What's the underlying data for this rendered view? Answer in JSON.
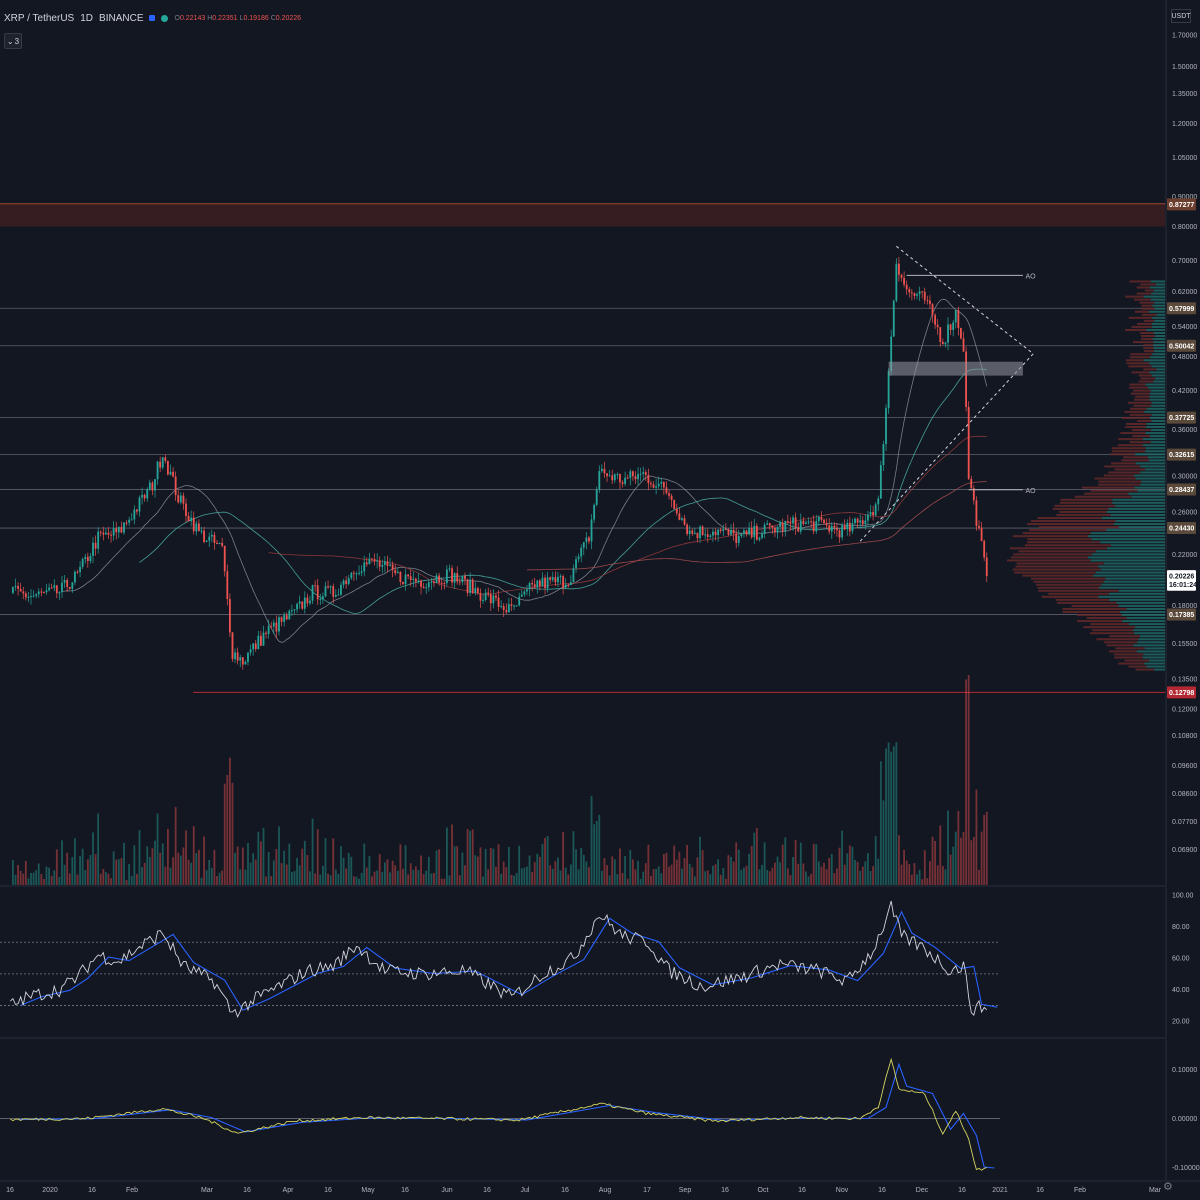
{
  "header": {
    "symbol": "XRP / TetherUS",
    "interval": "1D",
    "exchange": "BINANCE",
    "ohlc": [
      {
        "k": "O",
        "v": "0.22143"
      },
      {
        "k": "H",
        "v": "0.22351"
      },
      {
        "k": "L",
        "v": "0.19186"
      },
      {
        "k": "C",
        "v": "0.20226"
      }
    ],
    "indicator_count": "3",
    "unit": "USDT"
  },
  "colors": {
    "background": "#131722",
    "up": "#26a69a",
    "down": "#ef5350",
    "grid": "#2a2e39",
    "level": "#5d606b",
    "resistance_zone": "#3d1e22",
    "rsi": "#d1d4dc",
    "rsi_ma": "#2962ff",
    "osc": "#d4d460",
    "osc_ma": "#2962ff"
  },
  "icons": {
    "gear": "settings-gear-icon",
    "chevron": "chevron-down-icon"
  },
  "chart_data": [
    {
      "type": "candlestick",
      "name": "price",
      "scale": "log",
      "ylim": [
        0.06,
        1.95
      ],
      "price_axis": [
        "1.70000",
        "1.50000",
        "1.35000",
        "1.20000",
        "1.05000",
        "0.90000",
        "0.80000",
        "0.70000",
        "0.62000",
        "0.54000",
        "0.48000",
        "0.42000",
        "0.36000",
        "0.30000",
        "0.26000",
        "0.22000",
        "0.18000",
        "0.15500",
        "0.13500",
        "0.12000",
        "0.10800",
        "0.09600",
        "0.08600",
        "0.07700",
        "0.06900"
      ],
      "price_tags": [
        {
          "label": "0.87277",
          "kind": "resistance"
        },
        {
          "label": "0.57999",
          "kind": "level"
        },
        {
          "label": "0.50042",
          "kind": "level"
        },
        {
          "label": "0.37725",
          "kind": "level"
        },
        {
          "label": "0.32615",
          "kind": "level"
        },
        {
          "label": "0.28437",
          "kind": "level"
        },
        {
          "label": "0.24430",
          "kind": "level"
        },
        {
          "label": "0.20226",
          "kind": "last"
        },
        {
          "label": "16:01:24",
          "kind": "countdown"
        },
        {
          "label": "0.17385",
          "kind": "level"
        },
        {
          "label": "0.12798",
          "kind": "support"
        }
      ],
      "line_labels": [
        "AO",
        "AO"
      ],
      "resistance_zone": [
        0.8,
        0.875
      ],
      "close_points": [
        {
          "x": "2019-12-17",
          "y": 0.19
        },
        {
          "x": "2019-12-25",
          "y": 0.187
        },
        {
          "x": "2020-01-05",
          "y": 0.19
        },
        {
          "x": "2020-01-12",
          "y": 0.203
        },
        {
          "x": "2020-01-20",
          "y": 0.235
        },
        {
          "x": "2020-01-28",
          "y": 0.24
        },
        {
          "x": "2020-02-04",
          "y": 0.265
        },
        {
          "x": "2020-02-10",
          "y": 0.29
        },
        {
          "x": "2020-02-14",
          "y": 0.33
        },
        {
          "x": "2020-02-20",
          "y": 0.275
        },
        {
          "x": "2020-02-28",
          "y": 0.24
        },
        {
          "x": "2020-03-08",
          "y": 0.225
        },
        {
          "x": "2020-03-12",
          "y": 0.15
        },
        {
          "x": "2020-03-16",
          "y": 0.145
        },
        {
          "x": "2020-03-25",
          "y": 0.162
        },
        {
          "x": "2020-04-05",
          "y": 0.175
        },
        {
          "x": "2020-04-12",
          "y": 0.19
        },
        {
          "x": "2020-04-20",
          "y": 0.189
        },
        {
          "x": "2020-04-29",
          "y": 0.21
        },
        {
          "x": "2020-05-06",
          "y": 0.214
        },
        {
          "x": "2020-05-15",
          "y": 0.202
        },
        {
          "x": "2020-05-25",
          "y": 0.198
        },
        {
          "x": "2020-06-04",
          "y": 0.204
        },
        {
          "x": "2020-06-15",
          "y": 0.19
        },
        {
          "x": "2020-06-28",
          "y": 0.176
        },
        {
          "x": "2020-07-07",
          "y": 0.196
        },
        {
          "x": "2020-07-20",
          "y": 0.199
        },
        {
          "x": "2020-07-28",
          "y": 0.236
        },
        {
          "x": "2020-08-01",
          "y": 0.305
        },
        {
          "x": "2020-08-10",
          "y": 0.295
        },
        {
          "x": "2020-08-18",
          "y": 0.302
        },
        {
          "x": "2020-08-28",
          "y": 0.28
        },
        {
          "x": "2020-09-05",
          "y": 0.24
        },
        {
          "x": "2020-09-15",
          "y": 0.242
        },
        {
          "x": "2020-09-24",
          "y": 0.235
        },
        {
          "x": "2020-10-05",
          "y": 0.243
        },
        {
          "x": "2020-10-15",
          "y": 0.248
        },
        {
          "x": "2020-10-25",
          "y": 0.248
        },
        {
          "x": "2020-11-04",
          "y": 0.241
        },
        {
          "x": "2020-11-10",
          "y": 0.25
        },
        {
          "x": "2020-11-17",
          "y": 0.27
        },
        {
          "x": "2020-11-21",
          "y": 0.45
        },
        {
          "x": "2020-11-24",
          "y": 0.7
        },
        {
          "x": "2020-11-28",
          "y": 0.62
        },
        {
          "x": "2020-12-05",
          "y": 0.6
        },
        {
          "x": "2020-12-12",
          "y": 0.51
        },
        {
          "x": "2020-12-17",
          "y": 0.57
        },
        {
          "x": "2020-12-20",
          "y": 0.5
        },
        {
          "x": "2020-12-22",
          "y": 0.3
        },
        {
          "x": "2020-12-26",
          "y": 0.24
        },
        {
          "x": "2020-12-29",
          "y": 0.20226
        }
      ]
    },
    {
      "type": "line",
      "name": "rsi",
      "ylim": [
        10,
        105
      ],
      "axis": [
        "100.00",
        "80.00",
        "60.00",
        "40.00",
        "20.00"
      ],
      "bands": [
        70,
        50,
        30
      ],
      "points": [
        {
          "x": "2019-12-17",
          "y": 30
        },
        {
          "x": "2019-12-25",
          "y": 36
        },
        {
          "x": "2020-01-05",
          "y": 40
        },
        {
          "x": "2020-01-12",
          "y": 48
        },
        {
          "x": "2020-01-20",
          "y": 62
        },
        {
          "x": "2020-01-28",
          "y": 58
        },
        {
          "x": "2020-02-04",
          "y": 66
        },
        {
          "x": "2020-02-14",
          "y": 76
        },
        {
          "x": "2020-02-22",
          "y": 55
        },
        {
          "x": "2020-03-05",
          "y": 45
        },
        {
          "x": "2020-03-12",
          "y": 25
        },
        {
          "x": "2020-03-22",
          "y": 35
        },
        {
          "x": "2020-04-10",
          "y": 52
        },
        {
          "x": "2020-04-20",
          "y": 55
        },
        {
          "x": "2020-04-29",
          "y": 68
        },
        {
          "x": "2020-05-10",
          "y": 52
        },
        {
          "x": "2020-05-25",
          "y": 50
        },
        {
          "x": "2020-06-10",
          "y": 52
        },
        {
          "x": "2020-06-28",
          "y": 35
        },
        {
          "x": "2020-07-10",
          "y": 50
        },
        {
          "x": "2020-07-22",
          "y": 60
        },
        {
          "x": "2020-08-01",
          "y": 88
        },
        {
          "x": "2020-08-10",
          "y": 74
        },
        {
          "x": "2020-08-20",
          "y": 70
        },
        {
          "x": "2020-08-28",
          "y": 52
        },
        {
          "x": "2020-09-10",
          "y": 42
        },
        {
          "x": "2020-09-25",
          "y": 48
        },
        {
          "x": "2020-10-10",
          "y": 56
        },
        {
          "x": "2020-10-25",
          "y": 52
        },
        {
          "x": "2020-11-05",
          "y": 45
        },
        {
          "x": "2020-11-15",
          "y": 65
        },
        {
          "x": "2020-11-22",
          "y": 92
        },
        {
          "x": "2020-11-26",
          "y": 74
        },
        {
          "x": "2020-12-05",
          "y": 66
        },
        {
          "x": "2020-12-15",
          "y": 52
        },
        {
          "x": "2020-12-20",
          "y": 55
        },
        {
          "x": "2020-12-23",
          "y": 28
        },
        {
          "x": "2020-12-29",
          "y": 29
        }
      ]
    },
    {
      "type": "line",
      "name": "oscillator",
      "ylim": [
        -0.125,
        0.16
      ],
      "axis": [
        "0.10000",
        "0.00000",
        "-0.10000"
      ],
      "zero": 0,
      "points": [
        {
          "x": "2019-12-17",
          "y": -0.002
        },
        {
          "x": "2020-01-15",
          "y": 0.0
        },
        {
          "x": "2020-02-14",
          "y": 0.02
        },
        {
          "x": "2020-03-01",
          "y": 0.0
        },
        {
          "x": "2020-03-14",
          "y": -0.03
        },
        {
          "x": "2020-04-05",
          "y": -0.005
        },
        {
          "x": "2020-05-01",
          "y": 0.002
        },
        {
          "x": "2020-06-01",
          "y": 0.0
        },
        {
          "x": "2020-07-01",
          "y": -0.003
        },
        {
          "x": "2020-08-02",
          "y": 0.03
        },
        {
          "x": "2020-08-20",
          "y": 0.01
        },
        {
          "x": "2020-09-15",
          "y": -0.005
        },
        {
          "x": "2020-10-15",
          "y": 0.002
        },
        {
          "x": "2020-11-10",
          "y": 0.0
        },
        {
          "x": "2020-11-17",
          "y": 0.025
        },
        {
          "x": "2020-11-22",
          "y": 0.12
        },
        {
          "x": "2020-11-25",
          "y": 0.06
        },
        {
          "x": "2020-12-05",
          "y": 0.05
        },
        {
          "x": "2020-12-12",
          "y": -0.03
        },
        {
          "x": "2020-12-17",
          "y": 0.015
        },
        {
          "x": "2020-12-22",
          "y": -0.04
        },
        {
          "x": "2020-12-25",
          "y": -0.105
        },
        {
          "x": "2020-12-29",
          "y": -0.1
        }
      ]
    }
  ],
  "time_axis": [
    "16",
    "2020",
    "16",
    "Feb",
    "Mar",
    "16",
    "Apr",
    "16",
    "May",
    "16",
    "Jun",
    "16",
    "Jul",
    "16",
    "Aug",
    "17",
    "Sep",
    "16",
    "Oct",
    "16",
    "Nov",
    "16",
    "Dec",
    "16",
    "2021",
    "16",
    "Feb",
    "Mar"
  ]
}
